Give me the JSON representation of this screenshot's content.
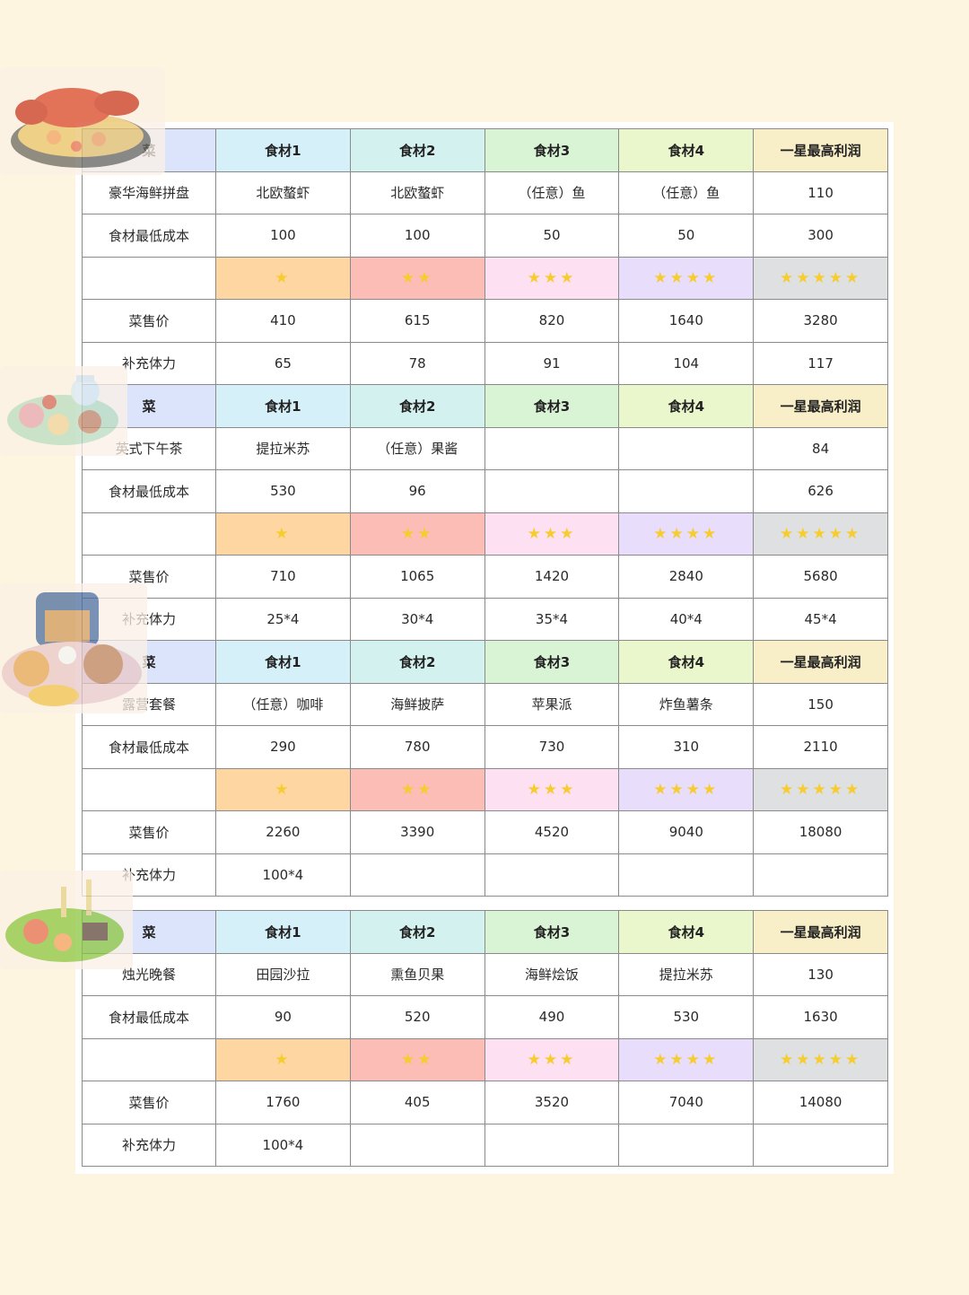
{
  "colors": {
    "page_bg": "#fdf5e0",
    "star": "#f6cc2e",
    "header_dish": "#dce4fb",
    "header_ing1": "#d6f0f9",
    "header_ing2": "#d3f1ee",
    "header_ing3": "#d9f3d5",
    "header_ing4": "#eaf6cb",
    "header_profit": "#f8efc8",
    "tier1": "#fdd6a2",
    "tier2": "#fbbdb5",
    "tier3": "#fde0f1",
    "tier4": "#e8ddfa",
    "tier5": "#dfe0e2"
  },
  "header": [
    "菜",
    "食材1",
    "食材2",
    "食材3",
    "食材4",
    "一星最高利润"
  ],
  "stars": [
    "★",
    "★★",
    "★★★",
    "★★★★",
    "★★★★★"
  ],
  "tables": [
    {
      "image": "seafood-platter-icon",
      "dish_row": [
        "豪华海鲜拼盘",
        "北欧螯虾",
        "北欧螯虾",
        "（任意）鱼",
        "（任意）鱼",
        "110"
      ],
      "cost_row": [
        "食材最低成本",
        "100",
        "100",
        "50",
        "50",
        "300"
      ],
      "price_row": [
        "菜售价",
        "410",
        "615",
        "820",
        "1640",
        "3280"
      ],
      "stamina_row": [
        "补充体力",
        "65",
        "78",
        "91",
        "104",
        "117"
      ]
    },
    {
      "image": "afternoon-tea-icon",
      "dish_row": [
        "英式下午茶",
        "提拉米苏",
        "（任意）果酱",
        "",
        "",
        "84"
      ],
      "cost_row": [
        "食材最低成本",
        "530",
        "96",
        "",
        "",
        "626"
      ],
      "price_row": [
        "菜售价",
        "710",
        "1065",
        "1420",
        "2840",
        "5680"
      ],
      "stamina_row": [
        "补充体力",
        "25*4",
        "30*4",
        "35*4",
        "40*4",
        "45*4"
      ]
    },
    {
      "image": "picnic-basket-icon",
      "dish_row": [
        "露营套餐",
        "（任意）咖啡",
        "海鲜披萨",
        "苹果派",
        "炸鱼薯条",
        "150"
      ],
      "cost_row": [
        "食材最低成本",
        "290",
        "780",
        "730",
        "310",
        "2110"
      ],
      "price_row": [
        "菜售价",
        "2260",
        "3390",
        "4520",
        "9040",
        "18080"
      ],
      "stamina_row": [
        "补充体力",
        "100*4",
        "",
        "",
        "",
        ""
      ]
    },
    {
      "image": "candlelight-dinner-icon",
      "dish_row": [
        "烛光晚餐",
        "田园沙拉",
        "熏鱼贝果",
        "海鲜烩饭",
        "提拉米苏",
        "130"
      ],
      "cost_row": [
        "食材最低成本",
        "90",
        "520",
        "490",
        "530",
        "1630"
      ],
      "price_row": [
        "菜售价",
        "1760",
        "405",
        "3520",
        "7040",
        "14080"
      ],
      "stamina_row": [
        "补充体力",
        "100*4",
        "",
        "",
        "",
        ""
      ]
    }
  ]
}
